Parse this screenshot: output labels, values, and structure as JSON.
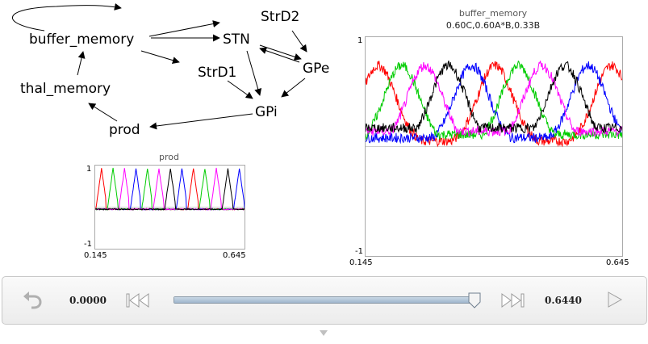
{
  "network": {
    "nodes": [
      {
        "id": "buffer_memory",
        "label": "buffer_memory"
      },
      {
        "id": "StrD2",
        "label": "StrD2"
      },
      {
        "id": "STN",
        "label": "STN"
      },
      {
        "id": "GPe",
        "label": "GPe"
      },
      {
        "id": "StrD1",
        "label": "StrD1"
      },
      {
        "id": "thal_memory",
        "label": "thal_memory"
      },
      {
        "id": "GPi",
        "label": "GPi"
      },
      {
        "id": "prod",
        "label": "prod"
      }
    ]
  },
  "prod_plot": {
    "title": "prod",
    "ymax_label": "1",
    "ymin_label": "-1",
    "xmin_label": "0.145",
    "xmax_label": "0.645"
  },
  "buffer_plot": {
    "title": "buffer_memory",
    "subtitle": "0.60C,0.60A*B,0.33B",
    "ymax_label": "1",
    "ymin_label": "-1",
    "xmin_label": "0.145",
    "xmax_label": "0.645"
  },
  "chart_data": [
    {
      "type": "line",
      "title": "prod",
      "xlim": [
        0.145,
        0.645
      ],
      "ylim": [
        -1,
        1
      ],
      "series_colors": [
        "#ff0000",
        "#0000ff",
        "#00cc00",
        "#ff00ff",
        "#000000"
      ],
      "peak_order": [
        "#ff0000",
        "#00cc00",
        "#ff00ff",
        "#0000ff",
        "#00cc00",
        "#ff00ff",
        "#000000",
        "#0000ff",
        "#ff0000",
        "#00cc00",
        "#ff00ff",
        "#000000",
        "#0000ff"
      ]
    },
    {
      "type": "line",
      "title": "buffer_memory",
      "subtitle": "0.60C,0.60A*B,0.33B",
      "xlim": [
        0.145,
        0.645
      ],
      "ylim": [
        -1,
        1
      ],
      "series_colors": [
        "#ff0000",
        "#0000ff",
        "#00cc00",
        "#ff00ff",
        "#000000"
      ],
      "peak_order": [
        "#ff0000",
        "#00cc00",
        "#ff00ff",
        "#000000",
        "#0000ff",
        "#ff0000",
        "#00cc00",
        "#ff00ff",
        "#000000",
        "#0000ff",
        "#ff0000"
      ]
    }
  ],
  "controls": {
    "current_time": "0.0000",
    "end_time": "0.6440",
    "progress": 0.994,
    "icons": {
      "reset": "undo-arrow-icon",
      "rewind": "skip-back-icon",
      "forward": "skip-forward-icon",
      "play": "play-icon"
    }
  }
}
